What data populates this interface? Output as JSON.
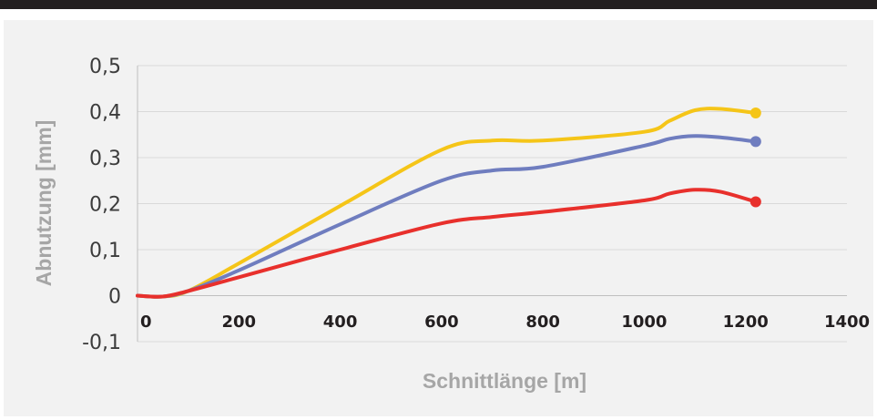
{
  "chart_data": {
    "type": "line",
    "title": "",
    "xlabel": "Schnittlänge [m]",
    "ylabel": "Abnutzung [mm]",
    "xlim": [
      0,
      1400
    ],
    "ylim": [
      -0.1,
      0.5
    ],
    "x_ticks": [
      0,
      200,
      400,
      600,
      800,
      1000,
      1200,
      1400
    ],
    "x_tick_labels": [
      "0",
      "200",
      "400",
      "600",
      "800",
      "1000",
      "1200",
      "1400"
    ],
    "y_ticks": [
      -0.1,
      0,
      0.1,
      0.2,
      0.3,
      0.4,
      0.5
    ],
    "y_tick_labels": [
      "-0,1",
      "0",
      "0,1",
      "0,2",
      "0,3",
      "0,4",
      "0,5"
    ],
    "grid": true,
    "legend": false,
    "series": [
      {
        "color": "#f5c518",
        "points": [
          [
            0,
            0.0
          ],
          [
            50,
            -0.002
          ],
          [
            100,
            0.01
          ],
          [
            200,
            0.07
          ],
          [
            400,
            0.195
          ],
          [
            600,
            0.317
          ],
          [
            700,
            0.337
          ],
          [
            800,
            0.337
          ],
          [
            1000,
            0.356
          ],
          [
            1050,
            0.38
          ],
          [
            1100,
            0.403
          ],
          [
            1150,
            0.406
          ],
          [
            1220,
            0.397
          ]
        ],
        "end_marker": true
      },
      {
        "color": "#6f7dbf",
        "points": [
          [
            0,
            0.0
          ],
          [
            50,
            -0.002
          ],
          [
            100,
            0.01
          ],
          [
            200,
            0.055
          ],
          [
            400,
            0.155
          ],
          [
            600,
            0.25
          ],
          [
            700,
            0.272
          ],
          [
            800,
            0.28
          ],
          [
            1000,
            0.326
          ],
          [
            1050,
            0.341
          ],
          [
            1100,
            0.347
          ],
          [
            1150,
            0.344
          ],
          [
            1220,
            0.335
          ]
        ],
        "end_marker": true
      },
      {
        "color": "#e8302c",
        "points": [
          [
            0,
            0.0
          ],
          [
            50,
            -0.002
          ],
          [
            100,
            0.01
          ],
          [
            200,
            0.04
          ],
          [
            400,
            0.1
          ],
          [
            600,
            0.157
          ],
          [
            700,
            0.171
          ],
          [
            800,
            0.182
          ],
          [
            1000,
            0.207
          ],
          [
            1050,
            0.222
          ],
          [
            1100,
            0.23
          ],
          [
            1150,
            0.226
          ],
          [
            1220,
            0.204
          ]
        ],
        "end_marker": true
      }
    ]
  },
  "colors": {
    "top_bar": "#231f20",
    "panel": "#f2f2f2",
    "grid": "#d9d9d9",
    "axis": "#bfbfbf"
  }
}
